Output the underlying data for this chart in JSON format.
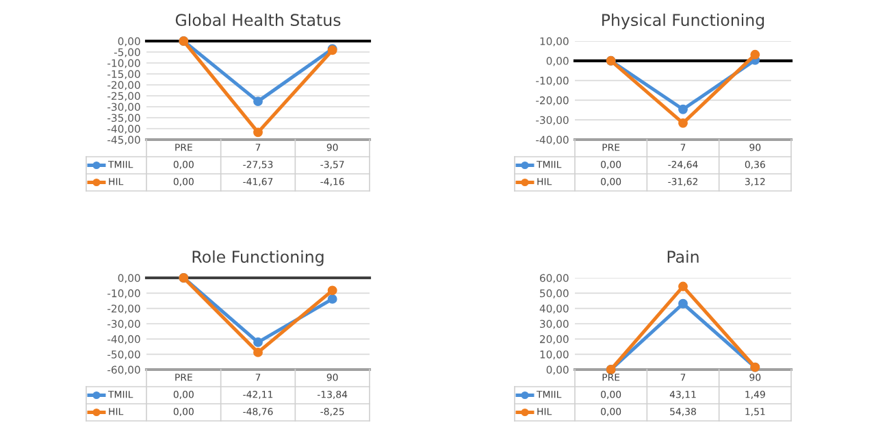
{
  "chart_data": [
    {
      "type": "line",
      "title": "Global Health Status",
      "categories": [
        "PRE",
        "7",
        "90"
      ],
      "series": [
        {
          "name": "TMIIL",
          "color": "#4a8fd8",
          "values": [
            0.0,
            -27.53,
            -3.57
          ],
          "value_labels": [
            "0,00",
            "-27,53",
            "-3,57"
          ]
        },
        {
          "name": "HIL",
          "color": "#f07d1e",
          "values": [
            0.0,
            -41.67,
            -4.16
          ],
          "value_labels": [
            "0,00",
            "-41,67",
            "-4,16"
          ]
        }
      ],
      "ylim": [
        -45,
        0
      ],
      "yticks": [
        {
          "value": 0,
          "label": "0,00"
        },
        {
          "value": -5,
          "label": "-5,00"
        },
        {
          "value": -10,
          "label": "-10,00"
        },
        {
          "value": -15,
          "label": "-15,00"
        },
        {
          "value": -20,
          "label": "-20,00"
        },
        {
          "value": -25,
          "label": "-25,00"
        },
        {
          "value": -30,
          "label": "-30,00"
        },
        {
          "value": -35,
          "label": "-35,00"
        },
        {
          "value": -40,
          "label": "-40,00"
        },
        {
          "value": -45,
          "label": "-45,00"
        }
      ],
      "ref_lines": [
        {
          "axis": "y",
          "value": 0,
          "color": "#000000"
        }
      ],
      "grid": "y",
      "legend": "bottom",
      "marker": "circle",
      "line_style": "solid"
    },
    {
      "type": "line",
      "title": "Physical Functioning",
      "categories": [
        "PRE",
        "7",
        "90"
      ],
      "series": [
        {
          "name": "TMIIL",
          "color": "#4a8fd8",
          "values": [
            0.0,
            -24.64,
            0.36
          ],
          "value_labels": [
            "0,00",
            "-24,64",
            "0,36"
          ]
        },
        {
          "name": "HIL",
          "color": "#f07d1e",
          "values": [
            0.0,
            -31.62,
            3.12
          ],
          "value_labels": [
            "0,00",
            "-31,62",
            "3,12"
          ]
        }
      ],
      "ylim": [
        -40,
        10
      ],
      "yticks": [
        {
          "value": 10,
          "label": "10,00"
        },
        {
          "value": 0,
          "label": "0,00"
        },
        {
          "value": -10,
          "label": "-10,00"
        },
        {
          "value": -20,
          "label": "-20,00"
        },
        {
          "value": -30,
          "label": "-30,00"
        },
        {
          "value": -40,
          "label": "-40,00"
        }
      ],
      "ref_lines": [
        {
          "axis": "y",
          "value": 0,
          "color": "#000000"
        }
      ],
      "grid": "y",
      "legend": "bottom",
      "marker": "circle",
      "line_style": "solid"
    },
    {
      "type": "line",
      "title": "Role Functioning",
      "categories": [
        "PRE",
        "7",
        "90"
      ],
      "series": [
        {
          "name": "TMIIL",
          "color": "#4a8fd8",
          "values": [
            0.0,
            -42.11,
            -13.84
          ],
          "value_labels": [
            "0,00",
            "-42,11",
            "-13,84"
          ]
        },
        {
          "name": "HIL",
          "color": "#f07d1e",
          "values": [
            0.0,
            -48.76,
            -8.25
          ],
          "value_labels": [
            "0,00",
            "-48,76",
            "-8,25"
          ]
        }
      ],
      "ylim": [
        -60,
        0
      ],
      "yticks": [
        {
          "value": 0,
          "label": "0,00"
        },
        {
          "value": -10,
          "label": "-10,00"
        },
        {
          "value": -20,
          "label": "-20,00"
        },
        {
          "value": -30,
          "label": "-30,00"
        },
        {
          "value": -40,
          "label": "-40,00"
        },
        {
          "value": -50,
          "label": "-50,00"
        },
        {
          "value": -60,
          "label": "-60,00"
        }
      ],
      "ref_lines": [
        {
          "axis": "y",
          "value": 0,
          "color": "#404040"
        }
      ],
      "grid": "y",
      "legend": "bottom",
      "marker": "circle",
      "line_style": "solid"
    },
    {
      "type": "line",
      "title": "Pain",
      "categories": [
        "PRE",
        "7",
        "90"
      ],
      "series": [
        {
          "name": "TMIIL",
          "color": "#4a8fd8",
          "values": [
            0.0,
            43.11,
            1.49
          ],
          "value_labels": [
            "0,00",
            "43,11",
            "1,49"
          ]
        },
        {
          "name": "HIL",
          "color": "#f07d1e",
          "values": [
            0.0,
            54.38,
            1.51
          ],
          "value_labels": [
            "0,00",
            "54,38",
            "1,51"
          ]
        }
      ],
      "ylim": [
        0,
        60
      ],
      "yticks": [
        {
          "value": 60,
          "label": "60,00"
        },
        {
          "value": 50,
          "label": "50,00"
        },
        {
          "value": 40,
          "label": "40,00"
        },
        {
          "value": 30,
          "label": "30,00"
        },
        {
          "value": 20,
          "label": "20,00"
        },
        {
          "value": 10,
          "label": "10,00"
        },
        {
          "value": 0,
          "label": "0,00"
        }
      ],
      "grid": "y",
      "legend": "bottom",
      "marker": "circle",
      "line_style": "solid"
    }
  ]
}
